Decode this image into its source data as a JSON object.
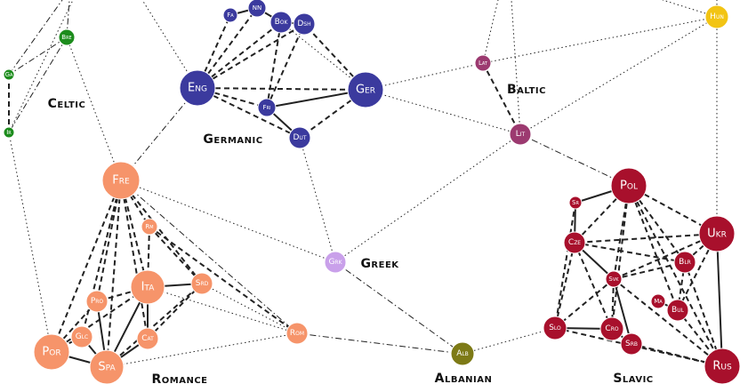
{
  "nodes": [
    "Eng",
    "Ger",
    "Fri",
    "Dut",
    "Bok",
    "Dsh",
    "NN",
    "Fa",
    "Bre",
    "Ga",
    "Ir",
    "Lat",
    "Lit",
    "Hun",
    "Fre",
    "Rm",
    "Ita",
    "Srd",
    "Pro",
    "Glc",
    "Cat",
    "Por",
    "Spa",
    "Rom",
    "Grk",
    "Alb",
    "Pol",
    "Ukr",
    "Sr",
    "Cze",
    "Svk",
    "Blr",
    "Ma",
    "Bul",
    "Slo",
    "Cro",
    "Srb",
    "Rus"
  ],
  "groups": [
    "Celtic",
    "Germanic",
    "Baltic",
    "Greek",
    "Romance",
    "Albanian",
    "Slavic"
  ]
}
